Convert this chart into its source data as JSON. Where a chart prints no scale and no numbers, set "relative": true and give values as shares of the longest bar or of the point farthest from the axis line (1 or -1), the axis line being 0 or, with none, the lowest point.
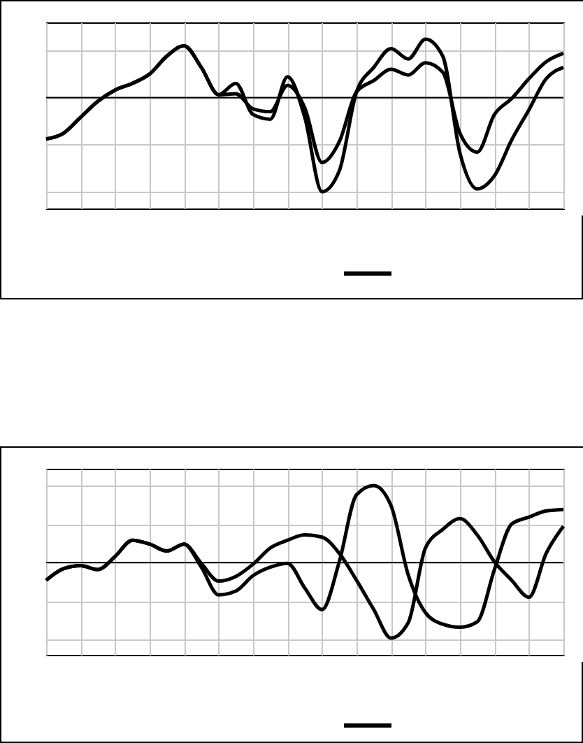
{
  "chart_data": [
    {
      "type": "line",
      "relative": true,
      "grid": true,
      "categories": [
        null,
        null,
        null,
        null,
        null,
        null,
        null,
        null,
        null,
        null,
        null,
        null,
        null,
        null,
        null,
        null,
        null,
        null,
        null,
        null,
        null,
        null,
        null,
        null,
        null,
        null,
        null,
        null,
        null,
        null,
        null
      ],
      "series": [
        {
          "color": "#000000",
          "values": [
            -0.44,
            -0.38,
            -0.21,
            -0.04,
            0.08,
            0.15,
            0.25,
            0.44,
            0.55,
            0.32,
            0.03,
            0.15,
            -0.18,
            -0.23,
            0.22,
            -0.21,
            -1,
            -0.78,
            0.06,
            0.32,
            0.52,
            0.41,
            0.62,
            0.44,
            -0.59,
            -0.97,
            -0.83,
            -0.45,
            -0.13,
            0.2,
            0.32
          ]
        },
        {
          "color": "#000000",
          "values": [
            -0.44,
            -0.38,
            -0.21,
            -0.04,
            0.08,
            0.15,
            0.25,
            0.44,
            0.55,
            0.32,
            0.03,
            0.04,
            -0.12,
            -0.15,
            0.13,
            -0.11,
            -0.69,
            -0.47,
            0.06,
            0.18,
            0.3,
            0.24,
            0.37,
            0.27,
            -0.38,
            -0.58,
            -0.18,
            -0.01,
            0.2,
            0.38,
            0.47
          ]
        }
      ]
    },
    {
      "type": "line",
      "relative": true,
      "grid": true,
      "categories": [
        null,
        null,
        null,
        null,
        null,
        null,
        null,
        null,
        null,
        null,
        null,
        null,
        null,
        null,
        null,
        null,
        null,
        null,
        null,
        null,
        null,
        null,
        null,
        null,
        null,
        null,
        null,
        null,
        null,
        null,
        null
      ],
      "series": [
        {
          "color": "#000000",
          "values": [
            -0.23,
            -0.08,
            -0.04,
            -0.09,
            0.08,
            0.29,
            0.24,
            0.15,
            0.24,
            -0.06,
            -0.42,
            -0.37,
            -0.17,
            -0.06,
            -0.01,
            -0.33,
            -0.61,
            0.01,
            0.88,
            1,
            0.74,
            -0.16,
            -0.65,
            -0.8,
            -0.84,
            -0.77,
            -0.09,
            0.5,
            0.59,
            0.67,
            0.69
          ]
        },
        {
          "color": "#000000",
          "values": [
            -0.23,
            -0.08,
            -0.04,
            -0.09,
            0.08,
            0.29,
            0.24,
            0.15,
            0.24,
            -0.01,
            -0.24,
            -0.18,
            -0.02,
            0.19,
            0.29,
            0.36,
            0.33,
            0.12,
            -0.23,
            -0.61,
            -0.98,
            -0.78,
            0.19,
            0.43,
            0.57,
            0.36,
            0.01,
            -0.23,
            -0.45,
            0.12,
            0.47
          ]
        }
      ]
    }
  ]
}
